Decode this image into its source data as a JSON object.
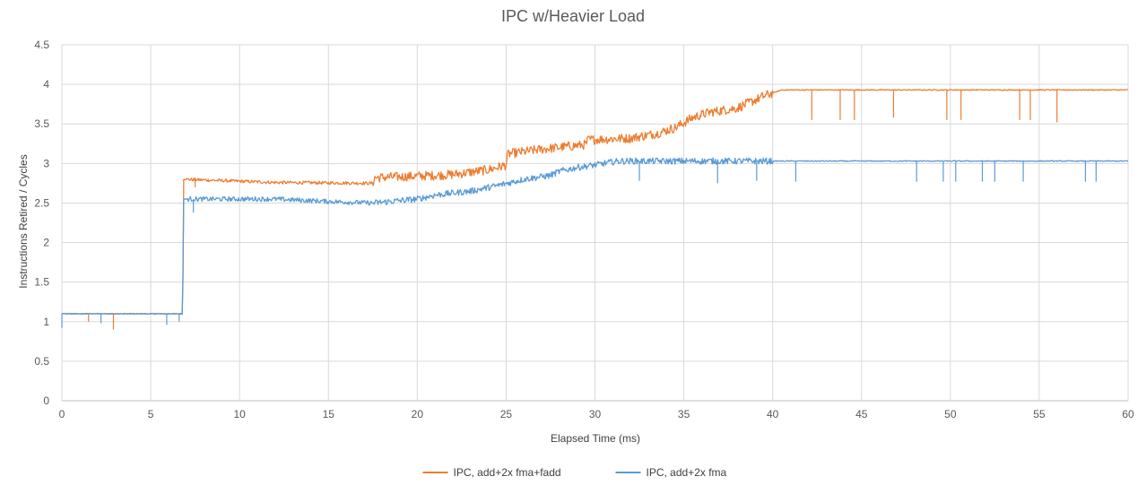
{
  "chart_data": {
    "type": "line",
    "title": "IPC w/Heavier Load",
    "xlabel": "Elapsed Time (ms)",
    "ylabel": "Instructions Retired / Cycles",
    "xlim": [
      0,
      60
    ],
    "ylim": [
      0,
      4.5
    ],
    "xticks": [
      0,
      5,
      10,
      15,
      20,
      25,
      30,
      35,
      40,
      45,
      50,
      55,
      60
    ],
    "yticks": [
      0,
      0.5,
      1,
      1.5,
      2,
      2.5,
      3,
      3.5,
      4,
      4.5
    ],
    "grid": true,
    "legend_position": "bottom",
    "series": [
      {
        "name": "IPC, add+2x fma+fadd",
        "color": "#ED7D31",
        "x": [
          0,
          6.8,
          6.85,
          12,
          17.5,
          17.6,
          20,
          22,
          24,
          25,
          25.1,
          27,
          29.5,
          29.6,
          32,
          33.5,
          34.5,
          35.5,
          36.5,
          38,
          39.5,
          40.5,
          45,
          50,
          55,
          60
        ],
        "y": [
          1.1,
          1.1,
          2.8,
          2.76,
          2.75,
          2.82,
          2.84,
          2.86,
          2.92,
          2.98,
          3.12,
          3.18,
          3.24,
          3.3,
          3.32,
          3.38,
          3.45,
          3.58,
          3.65,
          3.7,
          3.85,
          3.93,
          3.93,
          3.93,
          3.93,
          3.93
        ],
        "spikes": [
          [
            1.5,
            1.0
          ],
          [
            2.9,
            0.9
          ],
          [
            7.5,
            2.7
          ],
          [
            42.2,
            3.55
          ],
          [
            43.8,
            3.55
          ],
          [
            44.6,
            3.55
          ],
          [
            46.8,
            3.58
          ],
          [
            49.8,
            3.55
          ],
          [
            50.6,
            3.55
          ],
          [
            53.9,
            3.55
          ],
          [
            54.5,
            3.55
          ],
          [
            56,
            3.52
          ]
        ]
      },
      {
        "name": "IPC, add+2x fma",
        "color": "#5B9BD5",
        "x": [
          0,
          6.8,
          6.85,
          12,
          15,
          17.5,
          20,
          21,
          23,
          24.5,
          26,
          27.5,
          28,
          29,
          30,
          31,
          31.5,
          35,
          40,
          45,
          50,
          55,
          60
        ],
        "y": [
          1.1,
          1.1,
          2.55,
          2.55,
          2.52,
          2.5,
          2.55,
          2.6,
          2.65,
          2.72,
          2.8,
          2.85,
          2.9,
          2.95,
          2.98,
          3.02,
          3.03,
          3.03,
          3.03,
          3.03,
          3.03,
          3.03,
          3.03
        ],
        "spikes": [
          [
            0,
            0.92
          ],
          [
            2.2,
            0.98
          ],
          [
            5.9,
            0.96
          ],
          [
            6.6,
            1.0
          ],
          [
            7.4,
            2.38
          ],
          [
            32.5,
            2.78
          ],
          [
            36.9,
            2.75
          ],
          [
            39.1,
            2.78
          ],
          [
            41.3,
            2.77
          ],
          [
            48.1,
            2.77
          ],
          [
            49.6,
            2.77
          ],
          [
            50.3,
            2.77
          ],
          [
            51.8,
            2.77
          ],
          [
            52.5,
            2.77
          ],
          [
            54.1,
            2.77
          ],
          [
            57.6,
            2.77
          ],
          [
            58.2,
            2.77
          ]
        ]
      }
    ]
  }
}
